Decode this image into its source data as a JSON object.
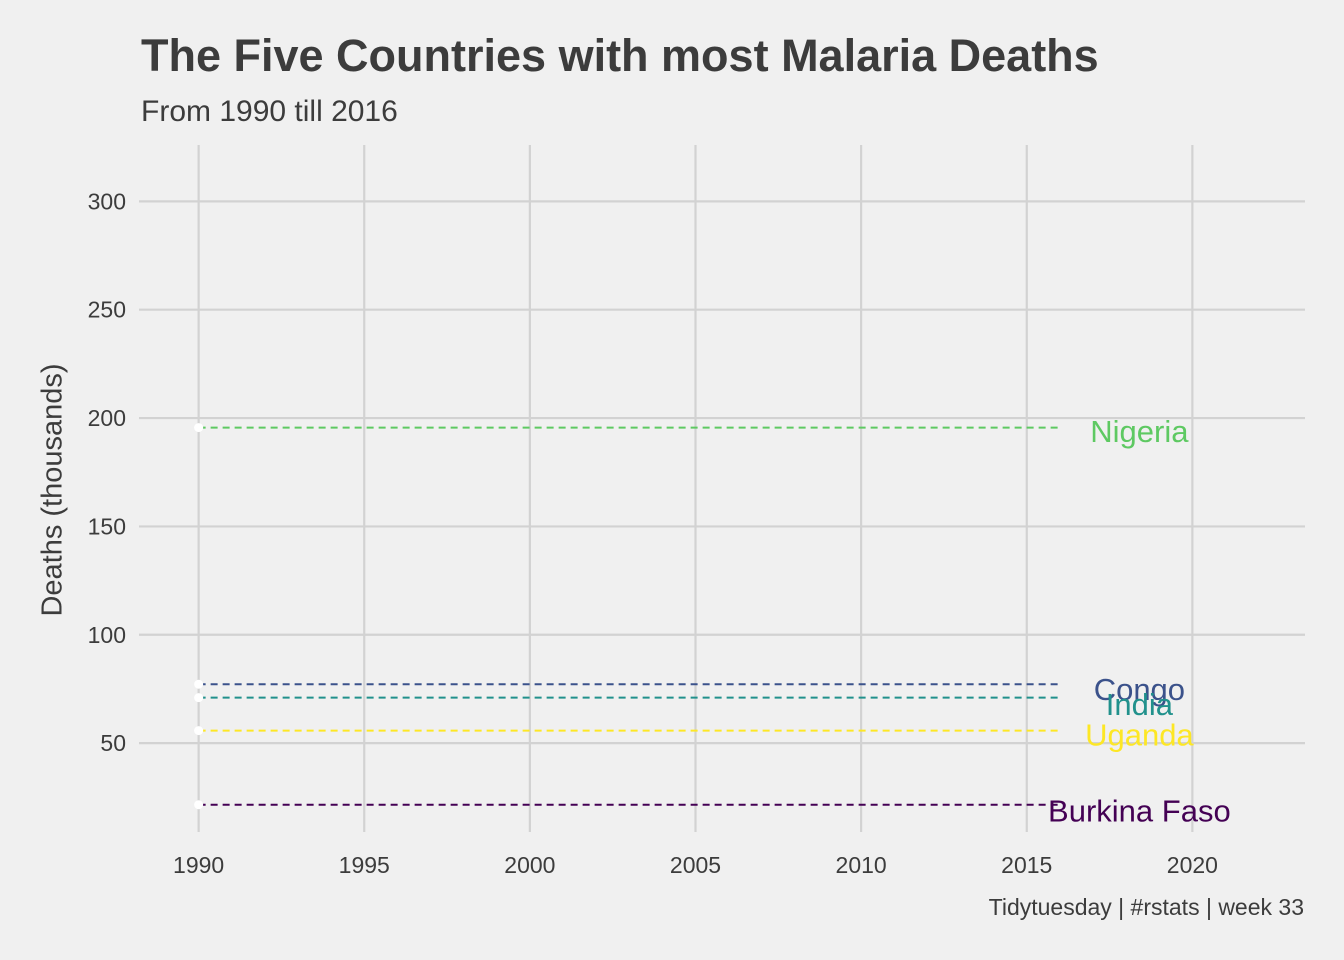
{
  "chart_data": {
    "type": "line",
    "title": "The Five Countries with most Malaria Deaths",
    "subtitle": "From 1990 till 2016",
    "xlabel": "",
    "ylabel": "Deaths (thousands)",
    "caption": "Tidytuesday | #rstats | week 33",
    "xlim": [
      1988.2,
      2023.4
    ],
    "ylim": [
      9,
      326
    ],
    "xticks": [
      1990,
      1995,
      2000,
      2005,
      2010,
      2015,
      2020
    ],
    "yticks": [
      50,
      100,
      150,
      200,
      250,
      300
    ],
    "grid": true,
    "legend": "none",
    "series": [
      {
        "name": "Nigeria",
        "color": "#5ec962",
        "x": [
          1990,
          2016
        ],
        "y": [
          195.6,
          195.6
        ],
        "label_y": 194
      },
      {
        "name": "Congo",
        "color": "#3b528b",
        "x": [
          1990,
          2016
        ],
        "y": [
          77.2,
          77.2
        ],
        "label_y": 75
      },
      {
        "name": "India",
        "color": "#21918c",
        "x": [
          1990,
          2016
        ],
        "y": [
          71,
          71
        ],
        "label_y": 68
      },
      {
        "name": "Uganda",
        "color": "#fde725",
        "x": [
          1990,
          2016
        ],
        "y": [
          55.8,
          55.8
        ],
        "label_y": 54
      },
      {
        "name": "Burkina Faso",
        "color": "#440154",
        "x": [
          1990,
          2016
        ],
        "y": [
          21.6,
          21.6
        ],
        "label_y": 19
      }
    ],
    "label_x": 2018.4,
    "colors": {
      "background": "#f0f0f0",
      "grid": "#d2d2d2",
      "text": "#3c3c3c",
      "marker": "#ffffff"
    }
  }
}
